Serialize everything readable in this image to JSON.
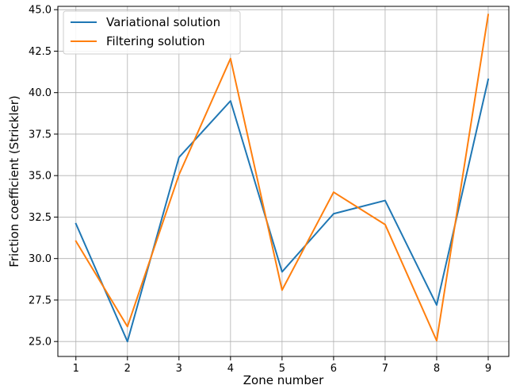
{
  "chart_data": {
    "type": "line",
    "xlabel": "Zone number",
    "ylabel": "Friction coefficient (Strickler)",
    "x": [
      1,
      2,
      3,
      4,
      5,
      6,
      7,
      8,
      9
    ],
    "xticks": [
      "1",
      "2",
      "3",
      "4",
      "5",
      "6",
      "7",
      "8",
      "9"
    ],
    "yticks": [
      "25.0",
      "27.5",
      "30.0",
      "32.5",
      "35.0",
      "37.5",
      "40.0",
      "42.5",
      "45.0"
    ],
    "xlim": [
      0.65,
      9.4
    ],
    "ylim": [
      24.1,
      45.2
    ],
    "grid": true,
    "legend_position": "top-left",
    "series": [
      {
        "name": "Variational solution",
        "color": "#1f77b4",
        "values": [
          32.1,
          25.0,
          36.1,
          39.5,
          29.2,
          32.7,
          33.5,
          27.2,
          40.8
        ]
      },
      {
        "name": "Filtering solution",
        "color": "#ff7f0e",
        "values": [
          31.05,
          25.9,
          35.05,
          42.05,
          28.1,
          34.0,
          32.05,
          25.05,
          44.7
        ]
      }
    ]
  }
}
